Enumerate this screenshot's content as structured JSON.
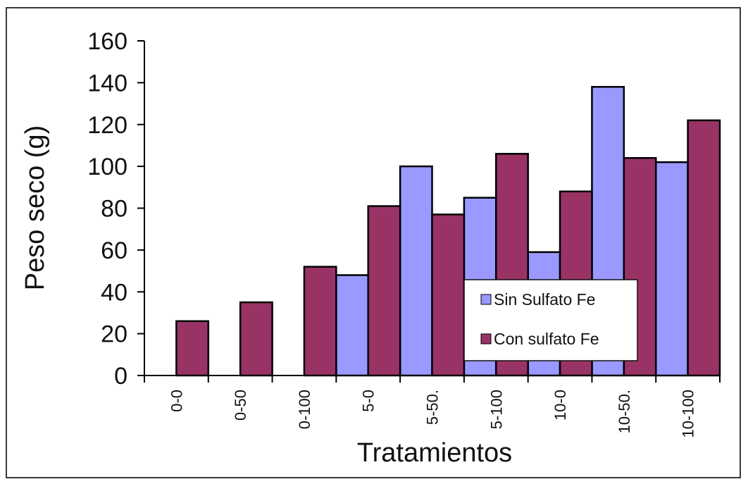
{
  "chart_data": {
    "type": "bar",
    "title": "",
    "xlabel": "Tratamientos",
    "ylabel": "Peso seco (g)",
    "ylim": [
      0,
      160
    ],
    "yticks": [
      "0",
      "20",
      "40",
      "60",
      "80",
      "100",
      "120",
      "140",
      "160"
    ],
    "categories": [
      "0-0",
      "0-50",
      "0-100",
      "5-0",
      "5-50.",
      "5-100",
      "10-0",
      "10-50.",
      "10-100"
    ],
    "series": [
      {
        "name": "Sin Sulfato Fe",
        "color": "#9999ff",
        "values": [
          null,
          null,
          null,
          48,
          100,
          85,
          59,
          138,
          102
        ]
      },
      {
        "name": "Con sulfato Fe",
        "color": "#993366",
        "values": [
          26,
          35,
          52,
          81,
          77,
          106,
          88,
          104,
          122
        ]
      }
    ],
    "legend_position": "right-inside",
    "grid": false
  }
}
